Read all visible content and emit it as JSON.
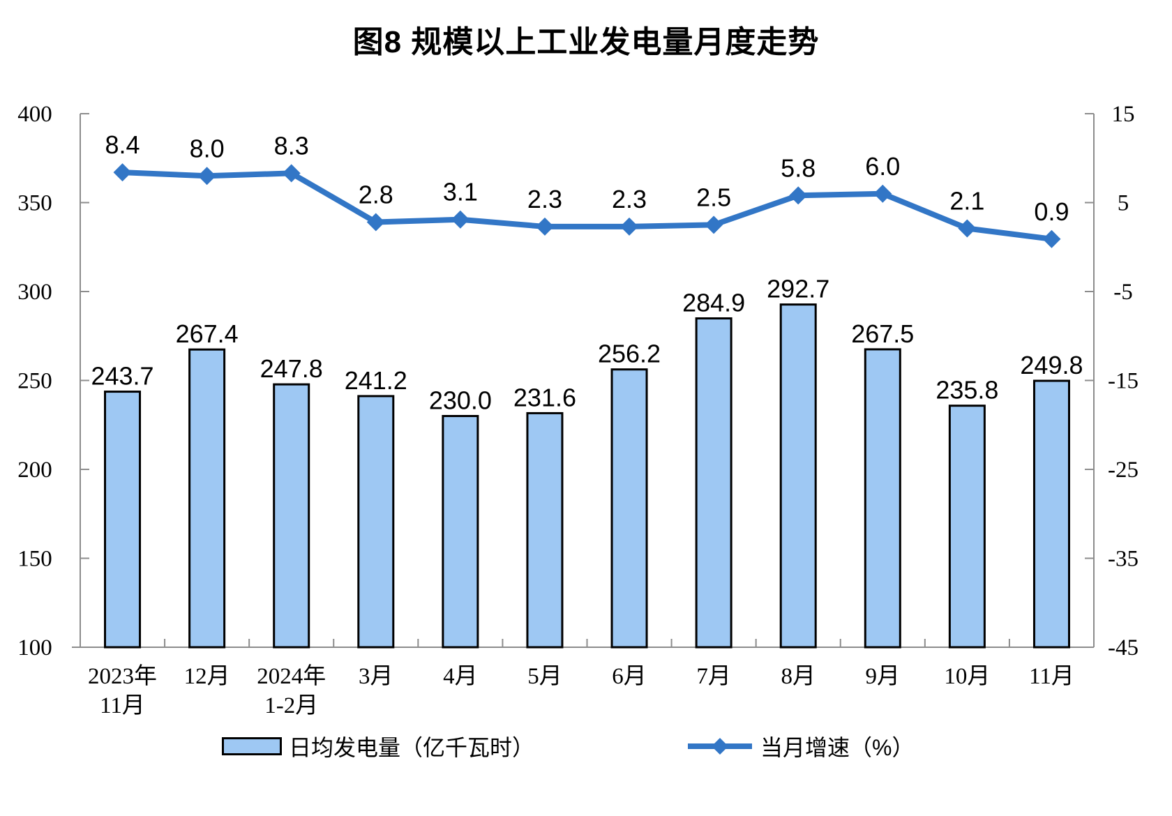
{
  "title": "图8 规模以上工业发电量月度走势",
  "chart_data": {
    "type": "bar+line",
    "categories": [
      "2023年11月",
      "12月",
      "2024年1-2月",
      "3月",
      "4月",
      "5月",
      "6月",
      "7月",
      "8月",
      "9月",
      "10月",
      "11月"
    ],
    "category_label_lines": [
      [
        "2023年",
        "11月"
      ],
      [
        "12月"
      ],
      [
        "2024年",
        "1-2月"
      ],
      [
        "3月"
      ],
      [
        "4月"
      ],
      [
        "5月"
      ],
      [
        "6月"
      ],
      [
        "7月"
      ],
      [
        "8月"
      ],
      [
        "9月"
      ],
      [
        "10月"
      ],
      [
        "11月"
      ]
    ],
    "series": [
      {
        "name": "日均发电量（亿千瓦时）",
        "type": "bar",
        "axis": "left",
        "values": [
          243.7,
          267.4,
          247.8,
          241.2,
          230.0,
          231.6,
          256.2,
          284.9,
          292.7,
          267.5,
          235.8,
          249.8
        ],
        "labels": [
          "243.7",
          "267.4",
          "247.8",
          "241.2",
          "230.0",
          "231.6",
          "256.2",
          "284.9",
          "292.7",
          "267.5",
          "235.8",
          "249.8"
        ],
        "fill_color": "#9EC8F3",
        "border_color": "#000000"
      },
      {
        "name": "当月增速（%）",
        "type": "line",
        "axis": "right",
        "values": [
          8.4,
          8.0,
          8.3,
          2.8,
          3.1,
          2.3,
          2.3,
          2.5,
          5.8,
          6.0,
          2.1,
          0.9
        ],
        "labels": [
          "8.4",
          "8.0",
          "8.3",
          "2.8",
          "3.1",
          "2.3",
          "2.3",
          "2.5",
          "5.8",
          "6.0",
          "2.1",
          "0.9"
        ],
        "line_color": "#3276C6",
        "marker": "diamond"
      }
    ],
    "left_axis": {
      "min": 100,
      "max": 400,
      "ticks": [
        400,
        350,
        300,
        250,
        200,
        150,
        100
      ]
    },
    "right_axis": {
      "min": -45,
      "max": 15,
      "ticks": [
        15,
        5,
        -5,
        -15,
        -25,
        -35,
        -45
      ]
    },
    "grid": false,
    "legend_position": "bottom",
    "axis_color": "#8C8C8C",
    "text_color": "#000000"
  }
}
